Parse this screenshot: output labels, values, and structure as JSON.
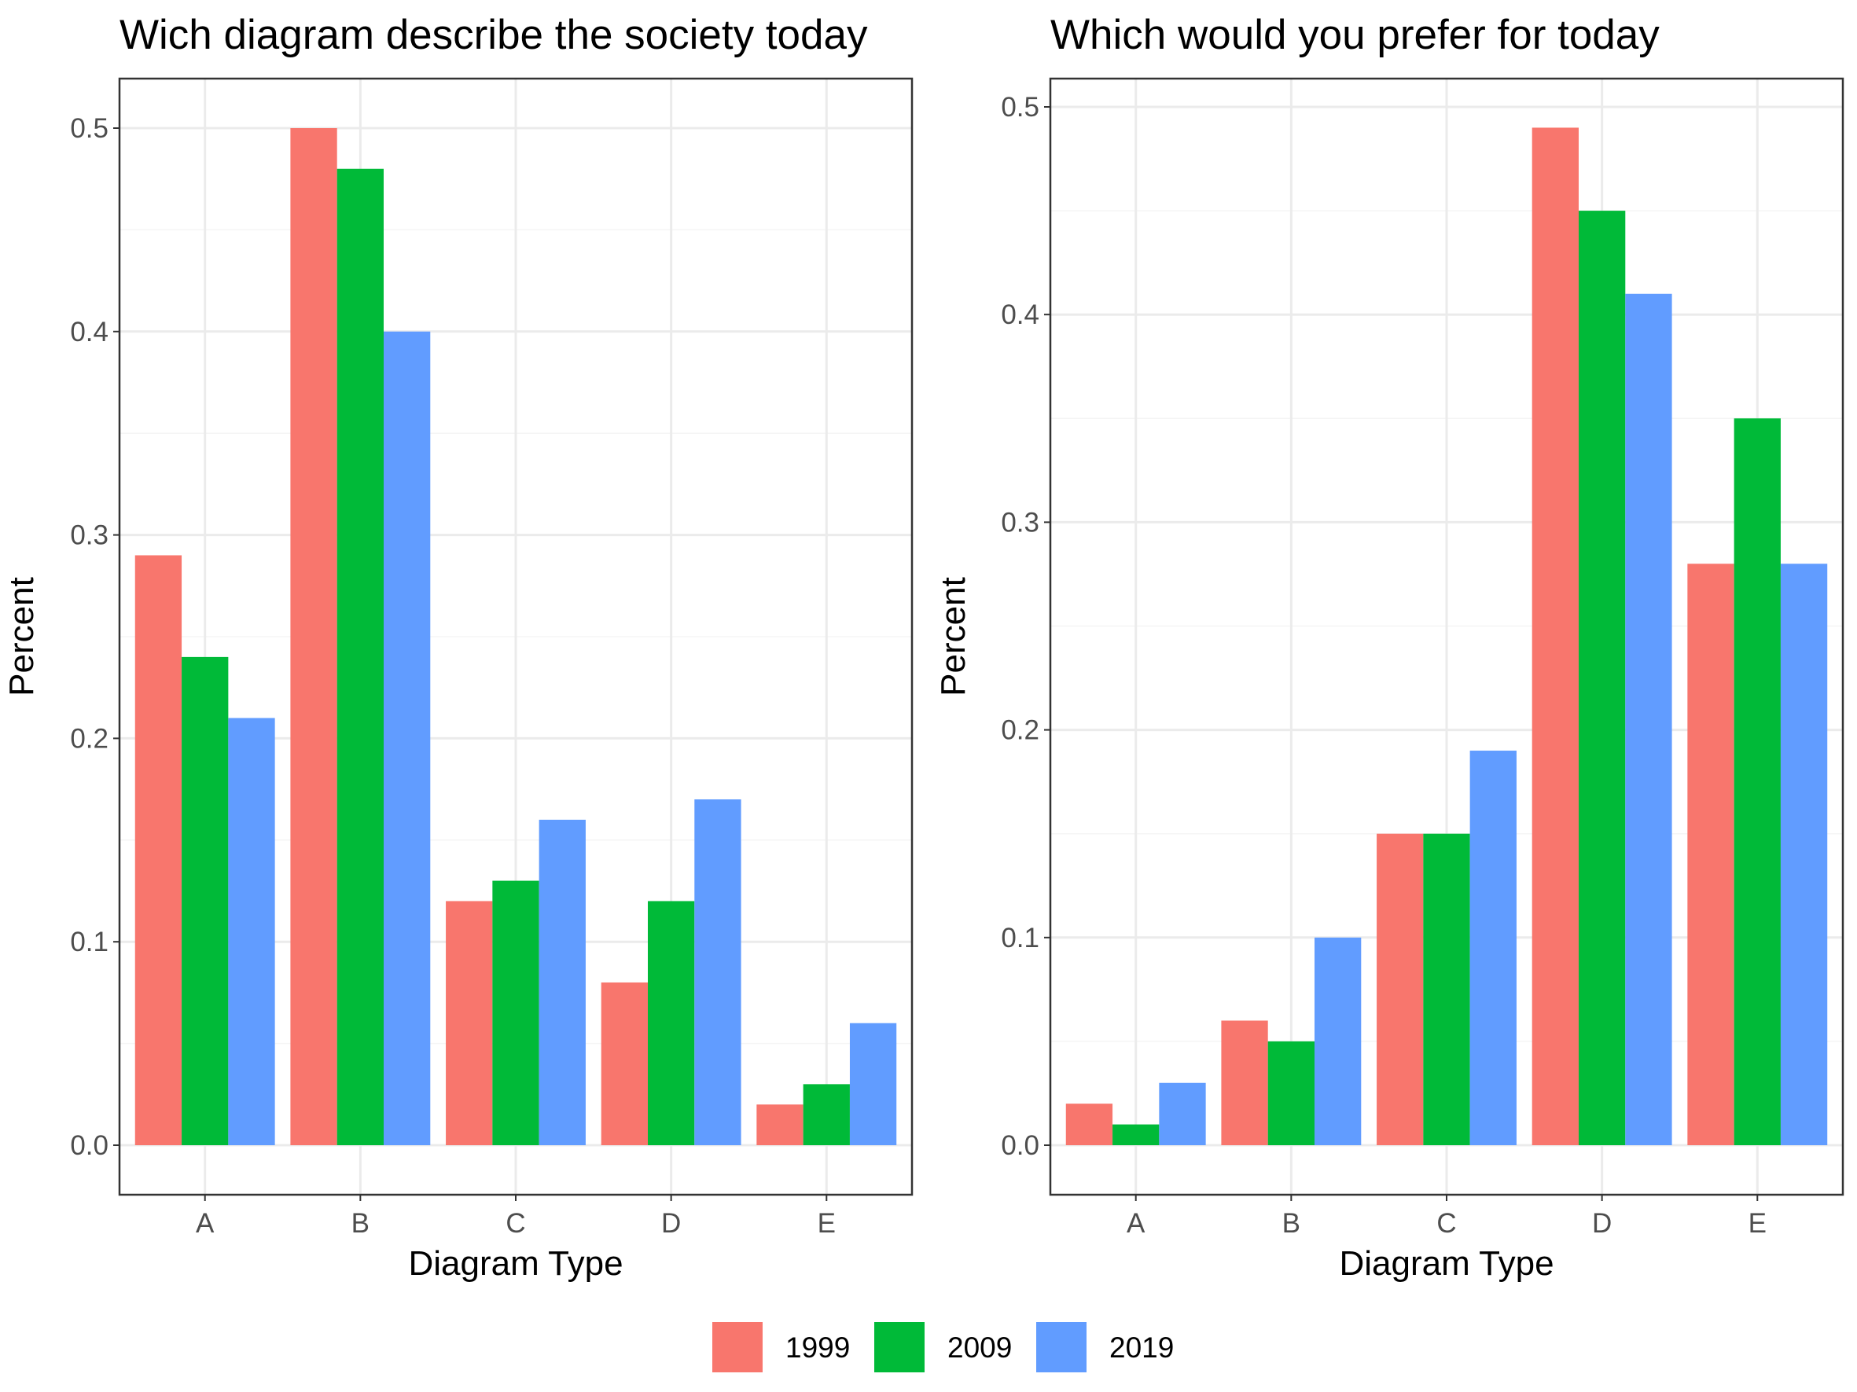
{
  "chart_data": [
    {
      "type": "bar",
      "title": "Wich diagram describe the society today",
      "xlabel": "Diagram Type",
      "ylabel": "Percent",
      "categories": [
        "A",
        "B",
        "C",
        "D",
        "E"
      ],
      "ylim": [
        0,
        0.5
      ],
      "yticks": [
        "0.0",
        "0.1",
        "0.2",
        "0.3",
        "0.4",
        "0.5"
      ],
      "grid": true,
      "series": [
        {
          "name": "1999",
          "values": [
            0.29,
            0.5,
            0.12,
            0.08,
            0.02
          ]
        },
        {
          "name": "2009",
          "values": [
            0.24,
            0.48,
            0.13,
            0.12,
            0.03
          ]
        },
        {
          "name": "2019",
          "values": [
            0.21,
            0.4,
            0.16,
            0.17,
            0.06
          ]
        }
      ]
    },
    {
      "type": "bar",
      "title": "Which would you prefer for today",
      "xlabel": "Diagram Type",
      "ylabel": "Percent",
      "categories": [
        "A",
        "B",
        "C",
        "D",
        "E"
      ],
      "ylim": [
        0,
        0.5
      ],
      "yticks": [
        "0.0",
        "0.1",
        "0.2",
        "0.3",
        "0.4",
        "0.5"
      ],
      "grid": true,
      "series": [
        {
          "name": "1999",
          "values": [
            0.02,
            0.06,
            0.15,
            0.49,
            0.28
          ]
        },
        {
          "name": "2009",
          "values": [
            0.01,
            0.05,
            0.15,
            0.45,
            0.35
          ]
        },
        {
          "name": "2019",
          "values": [
            0.03,
            0.1,
            0.19,
            0.41,
            0.28
          ]
        }
      ]
    }
  ],
  "legend": {
    "position": "bottom",
    "items": [
      {
        "label": "1999",
        "color": "#F8766D"
      },
      {
        "label": "2009",
        "color": "#00BA38"
      },
      {
        "label": "2019",
        "color": "#619CFF"
      }
    ]
  },
  "colors": {
    "panel_border": "#333333",
    "grid_major": "#ebebeb",
    "grid_minor": "#f5f5f5"
  }
}
